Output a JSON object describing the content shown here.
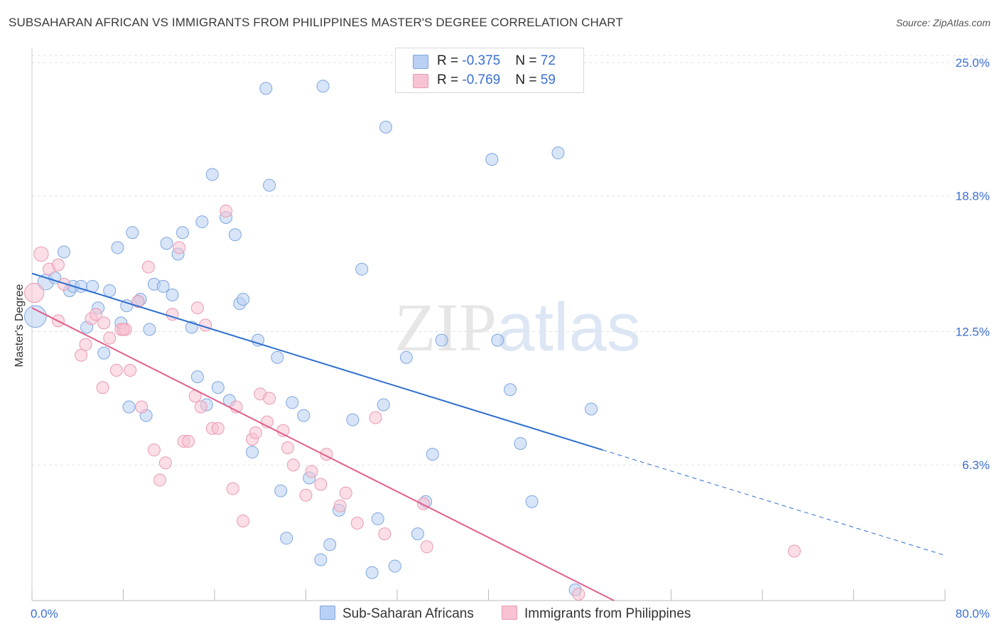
{
  "header": {
    "title": "SUBSAHARAN AFRICAN VS IMMIGRANTS FROM PHILIPPINES MASTER'S DEGREE CORRELATION CHART",
    "source": "Source: ZipAtlas.com"
  },
  "watermark": {
    "part1": "ZIP",
    "part2": "atlas"
  },
  "legend": {
    "rows": [
      {
        "r_label": "R = ",
        "r_value": "-0.375",
        "n_label": "N = ",
        "n_value": "72"
      },
      {
        "r_label": "R = ",
        "r_value": "-0.769",
        "n_label": "N = ",
        "n_value": "59"
      }
    ]
  },
  "colors": {
    "blue_fill": "#b8d0f3",
    "blue_stroke": "#7fa6e0",
    "blue_line": "#2f6fd0",
    "pink_fill": "#f7c3d2",
    "pink_stroke": "#e99ab2",
    "pink_line": "#e0608a",
    "tick_text": "#3b6fd4",
    "grid": "#e3e3e3"
  },
  "chart_data": {
    "type": "scatter",
    "title": "SUBSAHARAN AFRICAN VS IMMIGRANTS FROM PHILIPPINES MASTER'S DEGREE CORRELATION CHART",
    "xlabel": "",
    "ylabel": "Master's Degree",
    "x_tick_labels": [
      "0.0%",
      "80.0%"
    ],
    "y_tick_labels": [
      "6.3%",
      "12.5%",
      "18.8%",
      "25.0%"
    ],
    "y_ticks": [
      6.3,
      12.5,
      18.8,
      25.0
    ],
    "xlim": [
      0,
      80
    ],
    "ylim": [
      0,
      26
    ],
    "grid": true,
    "legend_position": "top-center",
    "series": [
      {
        "name": "Sub-Saharan Africans",
        "color": "#b8d0f3",
        "trend": {
          "x": [
            0,
            50
          ],
          "y": [
            15.2,
            7.0
          ],
          "dashed_to": [
            80,
            2.1
          ]
        },
        "points": [
          [
            0.3,
            13.2,
            1.8
          ],
          [
            1.2,
            14.8,
            1.3
          ],
          [
            2.0,
            15.0,
            1.0
          ],
          [
            2.8,
            16.2,
            1.0
          ],
          [
            3.3,
            14.4,
            1.0
          ],
          [
            3.6,
            14.6,
            1.0
          ],
          [
            4.3,
            14.6,
            1.0
          ],
          [
            5.3,
            14.6,
            1.0
          ],
          [
            4.8,
            12.7,
            1.0
          ],
          [
            5.8,
            13.6,
            1.0
          ],
          [
            6.3,
            11.5,
            1.0
          ],
          [
            6.8,
            14.4,
            1.0
          ],
          [
            7.5,
            16.4,
            1.0
          ],
          [
            7.8,
            12.9,
            1.0
          ],
          [
            8.3,
            13.7,
            1.0
          ],
          [
            8.5,
            9.0,
            1.0
          ],
          [
            8.8,
            17.1,
            1.0
          ],
          [
            9.5,
            14.0,
            1.0
          ],
          [
            9.3,
            13.9,
            1.0
          ],
          [
            10.0,
            8.6,
            1.0
          ],
          [
            10.7,
            14.7,
            1.0
          ],
          [
            11.5,
            14.6,
            1.0
          ],
          [
            11.8,
            16.6,
            1.0
          ],
          [
            12.3,
            14.2,
            1.0
          ],
          [
            12.8,
            16.1,
            1.0
          ],
          [
            13.2,
            17.1,
            1.0
          ],
          [
            14.0,
            12.7,
            1.0
          ],
          [
            14.5,
            10.4,
            1.0
          ],
          [
            14.9,
            17.6,
            1.0
          ],
          [
            15.3,
            9.1,
            1.0
          ],
          [
            15.8,
            19.8,
            1.0
          ],
          [
            16.3,
            9.9,
            1.0
          ],
          [
            17.0,
            17.8,
            1.0
          ],
          [
            17.3,
            9.3,
            1.0
          ],
          [
            17.8,
            17.0,
            1.0
          ],
          [
            18.2,
            13.8,
            1.0
          ],
          [
            18.5,
            14.0,
            1.0
          ],
          [
            19.3,
            6.9,
            1.0
          ],
          [
            19.8,
            12.1,
            1.0
          ],
          [
            20.5,
            23.8,
            1.0
          ],
          [
            20.8,
            19.3,
            1.0
          ],
          [
            21.5,
            11.3,
            1.0
          ],
          [
            21.8,
            5.1,
            1.0
          ],
          [
            22.3,
            2.9,
            1.0
          ],
          [
            22.8,
            9.2,
            1.0
          ],
          [
            23.8,
            8.6,
            1.0
          ],
          [
            24.3,
            5.7,
            1.0
          ],
          [
            25.3,
            1.9,
            1.0
          ],
          [
            25.5,
            23.9,
            1.0
          ],
          [
            26.1,
            2.6,
            1.0
          ],
          [
            26.9,
            4.2,
            1.0
          ],
          [
            28.1,
            8.4,
            1.0
          ],
          [
            28.9,
            15.4,
            1.0
          ],
          [
            29.8,
            1.3,
            1.0
          ],
          [
            30.3,
            3.8,
            1.0
          ],
          [
            30.8,
            9.1,
            1.0
          ],
          [
            31.0,
            22.0,
            1.0
          ],
          [
            31.8,
            1.6,
            1.0
          ],
          [
            32.8,
            11.3,
            1.0
          ],
          [
            33.8,
            3.1,
            1.0
          ],
          [
            34.5,
            4.6,
            1.0
          ],
          [
            35.1,
            6.8,
            1.0
          ],
          [
            35.9,
            12.1,
            1.0
          ],
          [
            40.3,
            20.5,
            1.0
          ],
          [
            40.8,
            12.1,
            1.0
          ],
          [
            41.9,
            9.8,
            1.0
          ],
          [
            42.8,
            7.3,
            1.0
          ],
          [
            43.8,
            4.6,
            1.0
          ],
          [
            46.1,
            20.8,
            1.0
          ],
          [
            47.6,
            0.5,
            1.0
          ],
          [
            49.0,
            8.9,
            1.0
          ],
          [
            10.3,
            12.6,
            1.0
          ]
        ]
      },
      {
        "name": "Immigrants from Philippines",
        "color": "#f7c3d2",
        "trend": {
          "x": [
            0,
            51
          ],
          "y": [
            13.6,
            0.0
          ]
        },
        "points": [
          [
            0.2,
            14.3,
            1.6
          ],
          [
            0.8,
            16.1,
            1.2
          ],
          [
            1.5,
            15.4,
            1.0
          ],
          [
            2.3,
            15.6,
            1.0
          ],
          [
            2.8,
            14.7,
            1.0
          ],
          [
            2.3,
            13.0,
            1.0
          ],
          [
            4.3,
            11.4,
            1.0
          ],
          [
            4.7,
            11.9,
            1.0
          ],
          [
            5.2,
            13.1,
            1.0
          ],
          [
            5.6,
            13.3,
            1.0
          ],
          [
            6.3,
            12.9,
            1.0
          ],
          [
            6.2,
            9.9,
            1.0
          ],
          [
            6.8,
            12.2,
            1.0
          ],
          [
            7.4,
            10.7,
            1.0
          ],
          [
            7.8,
            12.6,
            1.0
          ],
          [
            8.2,
            12.6,
            1.0
          ],
          [
            8.6,
            10.7,
            1.0
          ],
          [
            9.3,
            13.9,
            1.0
          ],
          [
            9.6,
            9.0,
            1.0
          ],
          [
            10.2,
            15.5,
            1.0
          ],
          [
            10.7,
            7.0,
            1.0
          ],
          [
            11.2,
            5.6,
            1.0
          ],
          [
            11.7,
            6.4,
            1.0
          ],
          [
            12.3,
            13.3,
            1.0
          ],
          [
            12.9,
            16.4,
            1.0
          ],
          [
            13.3,
            7.4,
            1.0
          ],
          [
            13.7,
            7.4,
            1.0
          ],
          [
            14.3,
            9.5,
            1.0
          ],
          [
            14.8,
            9.0,
            1.0
          ],
          [
            15.2,
            12.8,
            1.0
          ],
          [
            15.8,
            8.0,
            1.0
          ],
          [
            16.3,
            8.0,
            1.0
          ],
          [
            17.0,
            18.1,
            1.0
          ],
          [
            17.6,
            5.2,
            1.0
          ],
          [
            17.9,
            9.0,
            1.0
          ],
          [
            18.5,
            3.7,
            1.0
          ],
          [
            19.3,
            7.5,
            1.0
          ],
          [
            19.6,
            7.8,
            1.0
          ],
          [
            20.0,
            9.6,
            1.0
          ],
          [
            20.6,
            8.3,
            1.0
          ],
          [
            20.8,
            9.4,
            1.0
          ],
          [
            22.0,
            7.9,
            1.0
          ],
          [
            22.4,
            7.1,
            1.0
          ],
          [
            22.9,
            6.3,
            1.0
          ],
          [
            24.0,
            4.9,
            1.0
          ],
          [
            24.5,
            6.0,
            1.0
          ],
          [
            25.3,
            5.4,
            1.0
          ],
          [
            25.8,
            6.8,
            1.0
          ],
          [
            27.0,
            4.4,
            1.0
          ],
          [
            27.5,
            5.0,
            1.0
          ],
          [
            28.5,
            3.6,
            1.0
          ],
          [
            30.9,
            3.1,
            1.0
          ],
          [
            30.1,
            8.5,
            1.0
          ],
          [
            34.3,
            4.5,
            1.0
          ],
          [
            34.6,
            2.5,
            1.0
          ],
          [
            47.9,
            0.3,
            1.0
          ],
          [
            66.8,
            2.3,
            1.0
          ],
          [
            8.0,
            12.6,
            1.0
          ],
          [
            14.5,
            13.6,
            1.0
          ]
        ]
      }
    ]
  },
  "bottom_legend": [
    {
      "label": "Sub-Saharan Africans"
    },
    {
      "label": "Immigrants from Philippines"
    }
  ],
  "axes": {
    "x_min_label": "0.0%",
    "x_max_label": "80.0%",
    "y_label": "Master's Degree"
  }
}
